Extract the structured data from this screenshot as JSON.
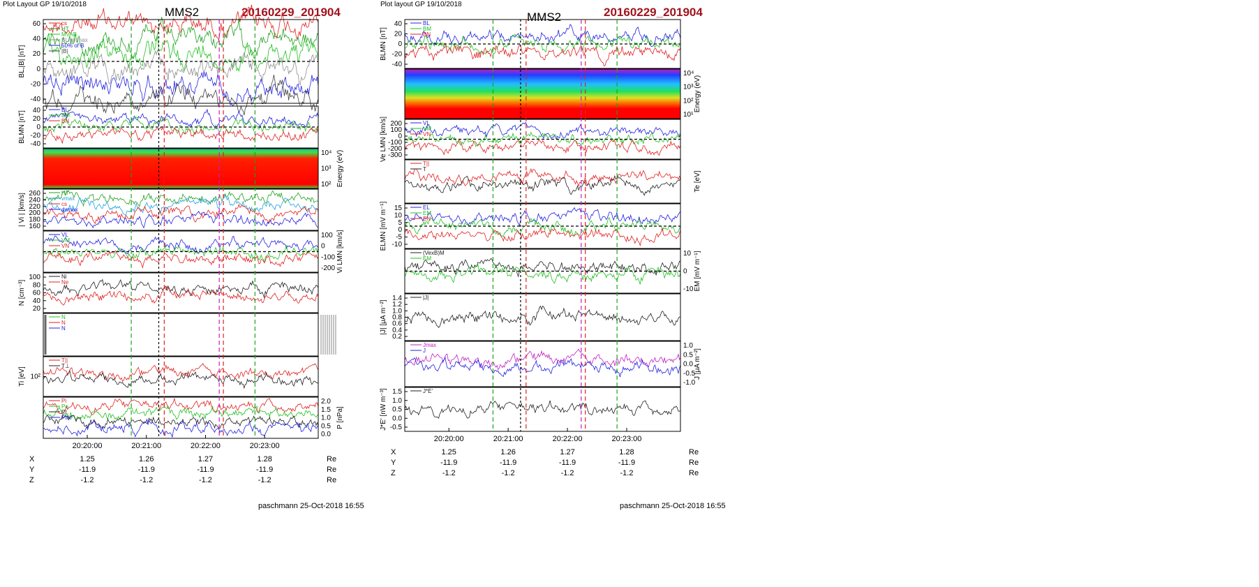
{
  "left": {
    "header": "Plot Layout GP 19/10/2018",
    "spacecraft": "MMS2",
    "event": "20160229_201904",
    "footer": "paschmann 25-Oct-2018 16:55",
    "time_ticks": [
      "20:20:00",
      "20:21:00",
      "20:22:00",
      "20:23:00"
    ],
    "ephemeris": {
      "rows": [
        {
          "label": "X",
          "values": [
            "1.25",
            "1.26",
            "1.27",
            "1.28"
          ],
          "unit": "Re"
        },
        {
          "label": "Y",
          "values": [
            "-11.9",
            "-11.9",
            "-11.9",
            "-11.9"
          ],
          "unit": "Re"
        },
        {
          "label": "Z",
          "values": [
            "-1.2",
            "-1.2",
            "-1.2",
            "-1.2"
          ],
          "unit": "Re"
        }
      ]
    },
    "panels": [
      {
        "id": "p1",
        "ylabel": "BL,|B| [nT]",
        "yticks": [
          "60",
          "40",
          "20",
          "0",
          "-20",
          "-40"
        ],
        "ylabel_right": "",
        "legend": [
          {
            "text": "cs",
            "color": "#e02020"
          },
          {
            "text": "HT",
            "color": "#20a020"
          },
          {
            "text": "MVAB",
            "color": "#20c020"
          },
          {
            "text": "BLminmax",
            "color": "#909090"
          },
          {
            "text": "50% of B",
            "color": "#2020e0"
          },
          {
            "text": "|B|",
            "color": "#404040"
          }
        ]
      },
      {
        "id": "p2",
        "ylabel": "BLMN [nT]",
        "yticks": [
          "40",
          "20",
          "0",
          "-20",
          "-40"
        ],
        "ylabel_right": "",
        "legend": [
          {
            "text": "BL",
            "color": "#2020e0"
          },
          {
            "text": "BM",
            "color": "#20c020"
          },
          {
            "text": "BN",
            "color": "#e02020"
          }
        ]
      },
      {
        "id": "p3",
        "ylabel": "",
        "yticks": [],
        "ylabel_right": "Energy (eV)",
        "rticks": [
          "10⁴",
          "10³",
          "10²"
        ],
        "legend": []
      },
      {
        "id": "p4",
        "ylabel": "| Vi | [km/s]",
        "yticks": [
          "260",
          "240",
          "220",
          "200",
          "180",
          "160"
        ],
        "ylabel_right": "",
        "legend": [
          {
            "text": "HT",
            "color": "#20a020"
          },
          {
            "text": "vmax",
            "color": "#20a0e0"
          },
          {
            "text": "cs",
            "color": "#e02020"
          },
          {
            "text": "dvmax",
            "color": "#2020e0"
          }
        ]
      },
      {
        "id": "p5",
        "ylabel": "",
        "yticks": [],
        "ylabel_right": "Vi LMN [km/s]",
        "rticks": [
          "100",
          "0",
          "-100",
          "-200"
        ],
        "legend": [
          {
            "text": "VL",
            "color": "#2020e0"
          },
          {
            "text": "VM",
            "color": "#20c020"
          },
          {
            "text": "VN",
            "color": "#e02020"
          }
        ]
      },
      {
        "id": "p6",
        "ylabel": "N [cm⁻³]",
        "yticks": [
          "100",
          "80",
          "60",
          "40",
          "20"
        ],
        "ylabel_right": "",
        "legend": [
          {
            "text": "Ni",
            "color": "#202020"
          },
          {
            "text": "Ne",
            "color": "#e02020"
          }
        ]
      },
      {
        "id": "p7",
        "ylabel": "",
        "yticks": [],
        "ylabel_right": "",
        "legend": [
          {
            "text": "N",
            "color": "#20c020"
          },
          {
            "text": "N",
            "color": "#e02020"
          },
          {
            "text": "N",
            "color": "#2020e0"
          }
        ]
      },
      {
        "id": "p8",
        "ylabel": "Ti [eV]",
        "yticks": [
          "10²"
        ],
        "ylabel_right": "",
        "legend": [
          {
            "text": "T||",
            "color": "#e02020"
          },
          {
            "text": "T⊥",
            "color": "#202020"
          }
        ]
      },
      {
        "id": "p9",
        "ylabel": "",
        "yticks": [],
        "ylabel_right": "P [nPa]",
        "rticks": [
          "2.0",
          "1.5",
          "1.0",
          "0.5",
          "0.0"
        ],
        "legend": [
          {
            "text": "Pi",
            "color": "#e02020"
          },
          {
            "text": "Pe",
            "color": "#20c020"
          },
          {
            "text": "Pt",
            "color": "#202020"
          },
          {
            "text": "Ptot",
            "color": "#2020e0"
          }
        ]
      }
    ]
  },
  "right": {
    "header": "Plot layout GP 19/10/2018",
    "spacecraft": "MMS2",
    "event": "20160229_201904",
    "footer": "paschmann 25-Oct-2018 16:55",
    "time_ticks": [
      "20:20:00",
      "20:21:00",
      "20:22:00",
      "20:23:00"
    ],
    "ephemeris": {
      "rows": [
        {
          "label": "X",
          "values": [
            "1.25",
            "1.26",
            "1.27",
            "1.28"
          ],
          "unit": "Re"
        },
        {
          "label": "Y",
          "values": [
            "-11.9",
            "-11.9",
            "-11.9",
            "-11.9"
          ],
          "unit": "Re"
        },
        {
          "label": "Z",
          "values": [
            "-1.2",
            "-1.2",
            "-1.2",
            "-1.2"
          ],
          "unit": "Re"
        }
      ]
    },
    "panels": [
      {
        "id": "q1",
        "ylabel": "BLMN [nT]",
        "yticks": [
          "40",
          "20",
          "0",
          "-20",
          "-40"
        ],
        "ylabel_right": "",
        "legend": [
          {
            "text": "BL",
            "color": "#2020e0"
          },
          {
            "text": "BM",
            "color": "#20c020"
          },
          {
            "text": "BN",
            "color": "#e02020"
          }
        ]
      },
      {
        "id": "q2",
        "ylabel": "",
        "yticks": [],
        "ylabel_right": "Energy (eV)",
        "rticks": [
          "10⁴",
          "10³",
          "10²",
          "10¹"
        ],
        "legend": []
      },
      {
        "id": "q3",
        "ylabel": "Ve LMN [km/s]",
        "yticks": [
          "200",
          "100",
          "0",
          "-100",
          "-200",
          "-300"
        ],
        "ylabel_right": "",
        "legend": [
          {
            "text": "VL",
            "color": "#2020e0"
          },
          {
            "text": "VM",
            "color": "#20c020"
          },
          {
            "text": "VN",
            "color": "#e02020"
          }
        ]
      },
      {
        "id": "q4",
        "ylabel": "",
        "yticks": [],
        "ylabel_right": "Te [eV]",
        "legend": [
          {
            "text": "T||",
            "color": "#e02020"
          },
          {
            "text": "T",
            "color": "#202020"
          }
        ]
      },
      {
        "id": "q5",
        "ylabel": "ELMN [mV m⁻¹]",
        "yticks": [
          "15",
          "10",
          "5",
          "0",
          "-5",
          "-10"
        ],
        "ylabel_right": "",
        "legend": [
          {
            "text": "EL",
            "color": "#2020e0"
          },
          {
            "text": "EM",
            "color": "#20c020"
          },
          {
            "text": "EN",
            "color": "#e02020"
          }
        ]
      },
      {
        "id": "q6",
        "ylabel": "",
        "yticks": [],
        "ylabel_right": "EM [mV m⁻¹]",
        "rticks": [
          "10",
          "0",
          "-10"
        ],
        "legend": [
          {
            "text": "(VexB)M",
            "color": "#202020"
          },
          {
            "text": "EM",
            "color": "#20c020"
          }
        ]
      },
      {
        "id": "q7",
        "ylabel": "|J| [μA m⁻²]",
        "yticks": [
          "1.4",
          "1.2",
          "1.0",
          "0.8",
          "0.6",
          "0.4",
          "0.2"
        ],
        "ylabel_right": "",
        "legend": [
          {
            "text": "|J|",
            "color": "#202020"
          }
        ]
      },
      {
        "id": "q8",
        "ylabel": "",
        "yticks": [],
        "ylabel_right": "J [μA m⁻²]",
        "rticks": [
          "1.0",
          "0.5",
          "0.0",
          "-0.5",
          "-1.0"
        ],
        "legend": [
          {
            "text": "Jmax",
            "color": "#c020c0"
          },
          {
            "text": "J",
            "color": "#2020e0"
          }
        ]
      },
      {
        "id": "q9",
        "ylabel": "J*E' [nW m⁻³]",
        "yticks": [
          "1.5",
          "1.0",
          "0.5",
          "0.0",
          "-0.5"
        ],
        "ylabel_right": "",
        "legend": [
          {
            "text": "J*E'",
            "color": "#202020"
          }
        ]
      }
    ]
  }
}
